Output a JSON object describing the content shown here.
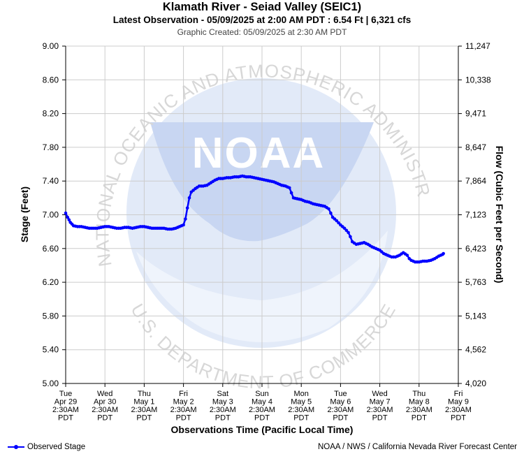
{
  "chart_data": {
    "type": "line",
    "title": "Klamath River - Seiad Valley (SEIC1)",
    "subtitle": "Latest Observation - 05/09/2025 at 2:00 AM PDT : 6.54 Ft | 6,321 cfs",
    "created": "Graphic Created: 05/09/2025 at 2:30 AM PDT",
    "xlabel": "Observations Time (Pacific Local Time)",
    "ylabel": "Stage (Feet)",
    "ylabel_right": "Flow (Cubic Feet per Second)",
    "ylim": [
      5.0,
      9.0
    ],
    "y_ticks": [
      "5.00",
      "5.40",
      "5.80",
      "6.20",
      "6.60",
      "7.00",
      "7.40",
      "7.80",
      "8.20",
      "8.60",
      "9.00"
    ],
    "y_right_ticks": [
      "4,020",
      "4,562",
      "5,143",
      "5,763",
      "6,423",
      "7,123",
      "7,864",
      "8,647",
      "9,471",
      "10,338",
      "11,247"
    ],
    "x_ticks": [
      {
        "day": "Tue",
        "date": "Apr 29",
        "time": "2:30AM",
        "tz": "PDT"
      },
      {
        "day": "Wed",
        "date": "Apr 30",
        "time": "2:30AM",
        "tz": "PDT"
      },
      {
        "day": "Thu",
        "date": "May 1",
        "time": "2:30AM",
        "tz": "PDT"
      },
      {
        "day": "Fri",
        "date": "May 2",
        "time": "2:30AM",
        "tz": "PDT"
      },
      {
        "day": "Sat",
        "date": "May 3",
        "time": "2:30AM",
        "tz": "PDT"
      },
      {
        "day": "Sun",
        "date": "May 4",
        "time": "2:30AM",
        "tz": "PDT"
      },
      {
        "day": "Mon",
        "date": "May 5",
        "time": "2:30AM",
        "tz": "PDT"
      },
      {
        "day": "Tue",
        "date": "May 6",
        "time": "2:30AM",
        "tz": "PDT"
      },
      {
        "day": "Wed",
        "date": "May 7",
        "time": "2:30AM",
        "tz": "PDT"
      },
      {
        "day": "Thu",
        "date": "May 8",
        "time": "2:30AM",
        "tz": "PDT"
      },
      {
        "day": "Fri",
        "date": "May 9",
        "time": "2:30AM",
        "tz": "PDT"
      }
    ],
    "grid": true,
    "legend_position": "bottom-left",
    "series": [
      {
        "name": "Observed Stage",
        "color": "#0000ff",
        "points": [
          [
            0.0,
            7.02
          ],
          [
            0.05,
            6.97
          ],
          [
            0.12,
            6.91
          ],
          [
            0.2,
            6.87
          ],
          [
            0.3,
            6.86
          ],
          [
            0.4,
            6.86
          ],
          [
            0.5,
            6.85
          ],
          [
            0.6,
            6.84
          ],
          [
            0.7,
            6.84
          ],
          [
            0.8,
            6.84
          ],
          [
            0.9,
            6.85
          ],
          [
            1.0,
            6.86
          ],
          [
            1.1,
            6.86
          ],
          [
            1.2,
            6.85
          ],
          [
            1.3,
            6.84
          ],
          [
            1.4,
            6.84
          ],
          [
            1.5,
            6.85
          ],
          [
            1.6,
            6.85
          ],
          [
            1.7,
            6.84
          ],
          [
            1.8,
            6.85
          ],
          [
            1.9,
            6.86
          ],
          [
            2.0,
            6.86
          ],
          [
            2.1,
            6.85
          ],
          [
            2.2,
            6.84
          ],
          [
            2.3,
            6.84
          ],
          [
            2.4,
            6.84
          ],
          [
            2.5,
            6.84
          ],
          [
            2.6,
            6.83
          ],
          [
            2.7,
            6.83
          ],
          [
            2.8,
            6.84
          ],
          [
            2.9,
            6.86
          ],
          [
            3.0,
            6.88
          ],
          [
            3.05,
            6.95
          ],
          [
            3.1,
            7.08
          ],
          [
            3.15,
            7.2
          ],
          [
            3.2,
            7.27
          ],
          [
            3.3,
            7.31
          ],
          [
            3.4,
            7.34
          ],
          [
            3.5,
            7.34
          ],
          [
            3.6,
            7.35
          ],
          [
            3.7,
            7.38
          ],
          [
            3.8,
            7.41
          ],
          [
            3.9,
            7.43
          ],
          [
            4.0,
            7.43
          ],
          [
            4.1,
            7.44
          ],
          [
            4.2,
            7.44
          ],
          [
            4.3,
            7.45
          ],
          [
            4.4,
            7.45
          ],
          [
            4.5,
            7.46
          ],
          [
            4.6,
            7.45
          ],
          [
            4.7,
            7.45
          ],
          [
            4.8,
            7.44
          ],
          [
            4.9,
            7.43
          ],
          [
            5.0,
            7.42
          ],
          [
            5.1,
            7.41
          ],
          [
            5.2,
            7.4
          ],
          [
            5.3,
            7.39
          ],
          [
            5.4,
            7.37
          ],
          [
            5.5,
            7.35
          ],
          [
            5.6,
            7.34
          ],
          [
            5.7,
            7.32
          ],
          [
            5.75,
            7.26
          ],
          [
            5.8,
            7.2
          ],
          [
            5.9,
            7.19
          ],
          [
            6.0,
            7.18
          ],
          [
            6.1,
            7.16
          ],
          [
            6.2,
            7.15
          ],
          [
            6.3,
            7.13
          ],
          [
            6.4,
            7.12
          ],
          [
            6.5,
            7.11
          ],
          [
            6.6,
            7.1
          ],
          [
            6.7,
            7.07
          ],
          [
            6.75,
            7.02
          ],
          [
            6.8,
            6.97
          ],
          [
            6.9,
            6.93
          ],
          [
            7.0,
            6.88
          ],
          [
            7.1,
            6.84
          ],
          [
            7.2,
            6.79
          ],
          [
            7.25,
            6.74
          ],
          [
            7.3,
            6.68
          ],
          [
            7.4,
            6.65
          ],
          [
            7.5,
            6.66
          ],
          [
            7.6,
            6.67
          ],
          [
            7.7,
            6.65
          ],
          [
            7.8,
            6.62
          ],
          [
            7.9,
            6.6
          ],
          [
            8.0,
            6.58
          ],
          [
            8.1,
            6.54
          ],
          [
            8.2,
            6.52
          ],
          [
            8.3,
            6.5
          ],
          [
            8.4,
            6.5
          ],
          [
            8.5,
            6.52
          ],
          [
            8.6,
            6.55
          ],
          [
            8.7,
            6.52
          ],
          [
            8.75,
            6.48
          ],
          [
            8.8,
            6.46
          ],
          [
            8.9,
            6.44
          ],
          [
            9.0,
            6.44
          ],
          [
            9.1,
            6.45
          ],
          [
            9.2,
            6.45
          ],
          [
            9.3,
            6.46
          ],
          [
            9.4,
            6.48
          ],
          [
            9.5,
            6.51
          ],
          [
            9.6,
            6.53
          ],
          [
            9.62,
            6.54
          ]
        ]
      }
    ]
  },
  "legend": {
    "label": "Observed Stage"
  },
  "footer": {
    "credit": "NOAA / NWS / California Nevada River Forecast Center"
  },
  "watermark": {
    "logo": "NOAA",
    "ring_text": "NATIONAL OCEANIC AND ATMOSPHERIC ADMINISTRATION",
    "bottom_text": "U.S. DEPARTMENT OF COMMERCE"
  }
}
